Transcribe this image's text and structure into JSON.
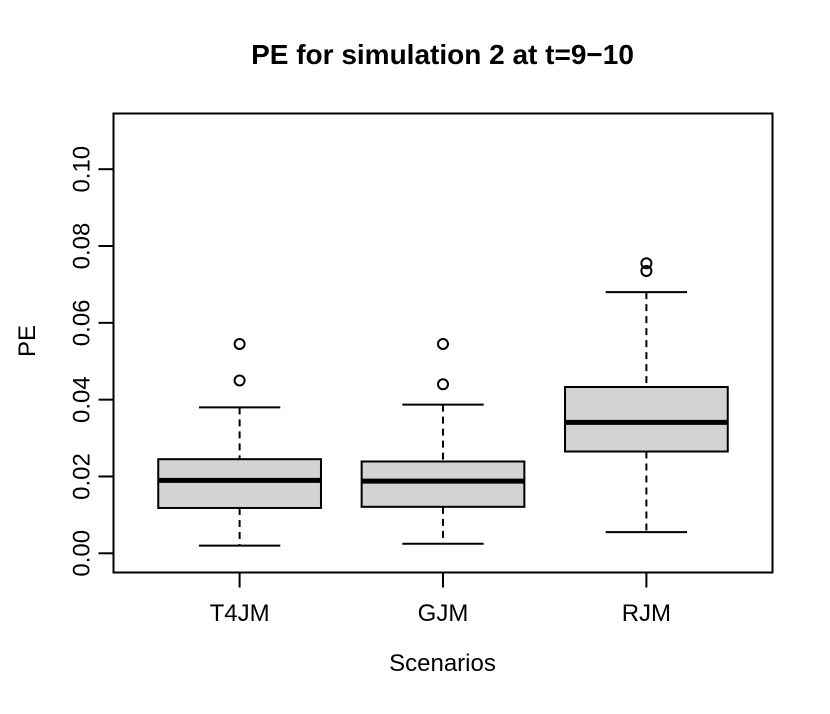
{
  "title": "PE for simulation 2 at t=9−10",
  "chart_data": {
    "type": "boxplot",
    "title": "PE for simulation 2 at t=9−10",
    "xlabel": "Scenarios",
    "ylabel": "PE",
    "categories": [
      "T4JM",
      "GJM",
      "RJM"
    ],
    "series": [
      {
        "name": "T4JM",
        "low": 0.002,
        "q1": 0.0118,
        "median": 0.019,
        "q3": 0.0245,
        "high": 0.038,
        "outliers": [
          0.045,
          0.0545
        ]
      },
      {
        "name": "GJM",
        "low": 0.0025,
        "q1": 0.0121,
        "median": 0.0188,
        "q3": 0.0239,
        "high": 0.0387,
        "outliers": [
          0.044,
          0.0545
        ]
      },
      {
        "name": "RJM",
        "low": 0.0055,
        "q1": 0.0265,
        "median": 0.0341,
        "q3": 0.0433,
        "high": 0.068,
        "outliers": [
          0.0735,
          0.0755
        ]
      }
    ],
    "yticks": [
      0.0,
      0.02,
      0.04,
      0.06,
      0.08,
      0.1
    ],
    "ytick_labels": [
      "0.00",
      "0.02",
      "0.04",
      "0.06",
      "0.08",
      "0.10"
    ],
    "ylim": [
      -0.005,
      0.1145
    ],
    "xlim": [
      0.38,
      3.62
    ],
    "positions": [
      1,
      2,
      3
    ],
    "box_width": 0.8,
    "cap_width": 0.4,
    "grid": "off",
    "legend": "none",
    "box_fill": "#d3d3d3",
    "stroke_color": "#000000",
    "background": "#ffffff"
  }
}
